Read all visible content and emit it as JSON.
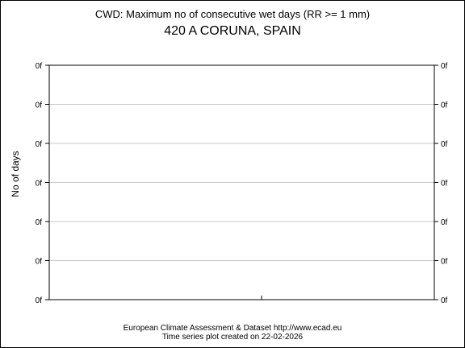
{
  "chart_data": {
    "type": "line",
    "title": "CWD: Maximum no of consecutive wet days (RR >= 1 mm)",
    "subtitle": "420 A CORUNA, SPAIN",
    "xlabel": "",
    "ylabel": "No of days",
    "y_tick_labels": [
      "0f",
      "0f",
      "0f",
      "0f",
      "0f",
      "0f",
      "0f"
    ],
    "grid": true,
    "series": []
  },
  "footer": {
    "line1": "European Climate Assessment & Dataset  http://www.ecad.eu",
    "line2": "Time series plot created on 22-02-2026"
  },
  "colors": {
    "axis": "#000000",
    "grid": "#c8c8c8",
    "background": "#ffffff"
  }
}
